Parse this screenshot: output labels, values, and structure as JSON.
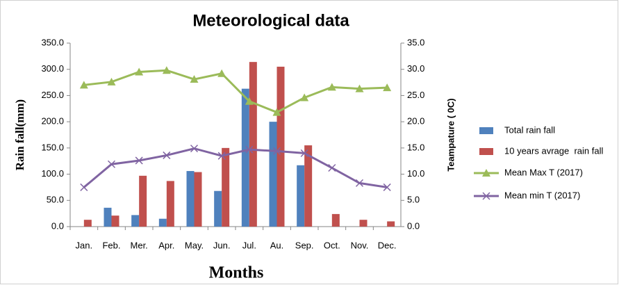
{
  "chart_data": {
    "type": "bar-line",
    "title": "Meteorological data",
    "x_label": "Months",
    "y_label": "Rain fall(mm)",
    "y2_label": "Teampature ( 0C)",
    "categories": [
      "Jan.",
      "Feb.",
      "Mer.",
      "Apr.",
      "May.",
      "Jun.",
      "Jul.",
      "Au.",
      "Sep.",
      "Oct.",
      "Nov.",
      "Dec."
    ],
    "series": [
      {
        "name": "Total rain fall",
        "type": "bar",
        "color": "#4f81bd",
        "values": [
          0,
          36,
          22,
          15,
          106,
          68,
          263,
          200,
          117,
          0,
          0,
          0
        ]
      },
      {
        "name": "10 years avrage  rain fall",
        "type": "bar",
        "color": "#c0504d",
        "values": [
          13,
          21,
          97,
          87,
          104,
          150,
          314,
          305,
          155,
          24,
          13,
          10
        ]
      },
      {
        "name": "Mean Max T (2017)",
        "type": "line",
        "marker": "triangle",
        "axis": "y2",
        "color": "#9bbb59",
        "values": [
          27.0,
          27.6,
          29.5,
          29.8,
          28.1,
          29.2,
          23.9,
          21.8,
          24.6,
          26.6,
          26.3,
          26.5
        ]
      },
      {
        "name": "Mean min T (2017)",
        "type": "line",
        "marker": "x",
        "axis": "y2",
        "color": "#8064a2",
        "values": [
          7.5,
          11.9,
          12.6,
          13.6,
          14.9,
          13.5,
          14.7,
          14.4,
          14.0,
          11.2,
          8.3,
          7.5
        ]
      }
    ],
    "ylim": [
      0,
      350
    ],
    "yticks": [
      {
        "value": 0,
        "label": "0.0"
      },
      {
        "value": 50,
        "label": "50.0"
      },
      {
        "value": 100,
        "label": "100.0"
      },
      {
        "value": 150,
        "label": "150.0"
      },
      {
        "value": 200,
        "label": "200.0"
      },
      {
        "value": 250,
        "label": "250.0"
      },
      {
        "value": 300,
        "label": "300.0"
      },
      {
        "value": 350,
        "label": "350.0"
      }
    ],
    "y2lim": [
      0,
      35
    ],
    "y2ticks": [
      {
        "value": 0,
        "label": "0.0"
      },
      {
        "value": 5,
        "label": "5.0"
      },
      {
        "value": 10,
        "label": "10.0"
      },
      {
        "value": 15,
        "label": "15.0"
      },
      {
        "value": 20,
        "label": "20.0"
      },
      {
        "value": 25,
        "label": "25.0"
      },
      {
        "value": 30,
        "label": "30.0"
      },
      {
        "value": 35,
        "label": "35.0"
      }
    ],
    "grid": false,
    "legend": "right"
  }
}
